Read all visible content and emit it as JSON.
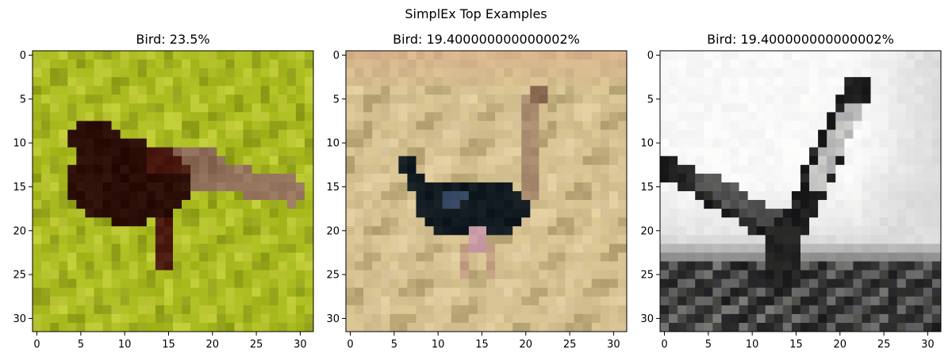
{
  "figure": {
    "suptitle": "SimplEx Top Examples"
  },
  "chart_data": [
    {
      "type": "image",
      "title": "Bird: 23.5%",
      "xlim": [
        -0.5,
        31.5
      ],
      "ylim": [
        31.5,
        -0.5
      ],
      "x_ticks": [
        0,
        5,
        10,
        15,
        20,
        25,
        30
      ],
      "y_ticks": [
        0,
        5,
        10,
        15,
        20,
        25,
        30
      ],
      "x_tick_labels": [
        "0",
        "5",
        "10",
        "15",
        "20",
        "25",
        "30"
      ],
      "y_tick_labels": [
        "0",
        "5",
        "10",
        "15",
        "20",
        "25",
        "30"
      ],
      "grid": false,
      "scene": "bird-on-grass",
      "colors": {
        "background": "#a9ba1f",
        "background_light": "#bcc834",
        "background_dark": "#93a21a",
        "body": "#2a0d06",
        "body_mid": "#4a1a10",
        "wing": "#8a6a55",
        "tail": "#9a7a62"
      }
    },
    {
      "type": "image",
      "title": "Bird: 19.400000000000002%",
      "xlim": [
        -0.5,
        31.5
      ],
      "ylim": [
        31.5,
        -0.5
      ],
      "x_ticks": [
        0,
        5,
        10,
        15,
        20,
        25,
        30
      ],
      "y_ticks": [
        0,
        5,
        10,
        15,
        20,
        25,
        30
      ],
      "x_tick_labels": [
        "0",
        "5",
        "10",
        "15",
        "20",
        "25",
        "30"
      ],
      "y_tick_labels": [
        "0",
        "5",
        "10",
        "15",
        "20",
        "25",
        "30"
      ],
      "grid": false,
      "scene": "ostrich-on-savanna",
      "colors": {
        "background": "#d4c08f",
        "background_light": "#ddc99c",
        "background_dark": "#b8a676",
        "sky": "#d6b48c",
        "body": "#111a20",
        "body_blue": "#3a4c66",
        "neck": "#a88b6e",
        "legs": "#c4a084",
        "pink": "#c89aa4"
      }
    },
    {
      "type": "image",
      "title": "Bird: 19.400000000000002%",
      "xlim": [
        -0.5,
        31.5
      ],
      "ylim": [
        31.5,
        -0.5
      ],
      "x_ticks": [
        0,
        5,
        10,
        15,
        20,
        25,
        30
      ],
      "y_ticks": [
        0,
        5,
        10,
        15,
        20,
        25,
        30
      ],
      "x_tick_labels": [
        "0",
        "5",
        "10",
        "15",
        "20",
        "25",
        "30"
      ],
      "y_tick_labels": [
        "0",
        "5",
        "10",
        "15",
        "20",
        "25",
        "30"
      ],
      "grid": false,
      "scene": "grayscale-bird-in-flight",
      "colors": {
        "sky": "#f8f8f8",
        "sky_haze": "#dcdcdc",
        "ground": "#3a3a3a",
        "ground_dark": "#262626",
        "ground_light": "#6a6a6a",
        "bird": "#222222",
        "bird_edge": "#555555",
        "wing_light": "#bcbcbc"
      }
    }
  ]
}
